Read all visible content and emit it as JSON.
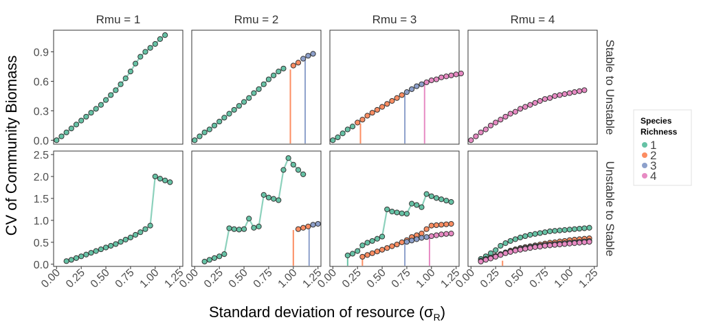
{
  "chart_data": {
    "type": "scatter",
    "ylabel": "CV of Community Biomass",
    "xlabel": "Standard deviation of resource (σ",
    "xlabel_sub": "R",
    "xlabel_close": ")",
    "col_strips": [
      "Rmu = 1",
      "Rmu = 2",
      "Rmu = 3",
      "Rmu = 4"
    ],
    "row_strips": [
      "Stable to Unstable",
      "Unstable to Stable"
    ],
    "x_ticks": [
      "0.00",
      "0.25",
      "0.50",
      "0.75",
      "1.00",
      "1.25"
    ],
    "x_tick_values": [
      0,
      0.25,
      0.5,
      0.75,
      1.0,
      1.25
    ],
    "xlim": [
      -0.03,
      1.28
    ],
    "rows": [
      {
        "ylim": [
          -0.04,
          1.12
        ],
        "y_tick_values": [
          0,
          0.3,
          0.6,
          0.9
        ],
        "y_ticks": [
          "0.0",
          "0.3",
          "0.6",
          "0.9"
        ]
      },
      {
        "ylim": [
          -0.05,
          2.58
        ],
        "y_tick_values": [
          0,
          0.5,
          1.0,
          1.5,
          2.0,
          2.5
        ],
        "y_ticks": [
          "0.0",
          "0.5",
          "1.0",
          "1.5",
          "2.0",
          "2.5"
        ]
      }
    ],
    "legend": {
      "title_line1": "Species",
      "title_line2": "Richness",
      "labels": [
        "1",
        "2",
        "3",
        "4"
      ]
    },
    "colors": {
      "1": "#66c2a5",
      "2": "#fc8d62",
      "3": "#8da0cb",
      "4": "#e78ac3"
    },
    "panels": [
      {
        "row": 0,
        "col": 0,
        "series": [
          {
            "richness": "1",
            "x_start": 0.0,
            "x_step": 0.05,
            "y": [
              0.0,
              0.04,
              0.08,
              0.12,
              0.16,
              0.2,
              0.24,
              0.28,
              0.32,
              0.36,
              0.41,
              0.46,
              0.51,
              0.57,
              0.63,
              0.7,
              0.78,
              0.85,
              0.9,
              0.94,
              0.98,
              1.03,
              1.07
            ]
          }
        ],
        "vlines": []
      },
      {
        "row": 0,
        "col": 1,
        "series": [
          {
            "richness": "1",
            "x_start": 0.0,
            "x_step": 0.05,
            "y": [
              0.0,
              0.04,
              0.08,
              0.11,
              0.15,
              0.19,
              0.23,
              0.27,
              0.31,
              0.35,
              0.39,
              0.43,
              0.48,
              0.52,
              0.57,
              0.62,
              0.66,
              0.7,
              0.73
            ]
          },
          {
            "richness": "2",
            "x_start": 1.0,
            "x_step": 0.05,
            "y": [
              0.76,
              0.79
            ]
          },
          {
            "richness": "3",
            "x_start": 1.1,
            "x_step": 0.05,
            "y": [
              0.83,
              0.86,
              0.88
            ]
          }
        ],
        "vlines": [
          {
            "richness": "2",
            "x": 0.97,
            "y_top": 0.72
          },
          {
            "richness": "3",
            "x": 1.12,
            "y_top": 0.84
          }
        ]
      },
      {
        "row": 0,
        "col": 2,
        "series": [
          {
            "richness": "1",
            "x_start": 0.0,
            "x_step": 0.05,
            "y": [
              0.0,
              0.03,
              0.07,
              0.11,
              0.14
            ]
          },
          {
            "richness": "2",
            "x_start": 0.25,
            "x_step": 0.05,
            "y": [
              0.18,
              0.21,
              0.25,
              0.28,
              0.31,
              0.34,
              0.37,
              0.4,
              0.43,
              0.46
            ]
          },
          {
            "richness": "3",
            "x_start": 0.75,
            "x_step": 0.05,
            "y": [
              0.49,
              0.52,
              0.55,
              0.57
            ]
          },
          {
            "richness": "4",
            "x_start": 0.95,
            "x_step": 0.05,
            "y": [
              0.59,
              0.61,
              0.62,
              0.64,
              0.65,
              0.66,
              0.67,
              0.68
            ]
          }
        ],
        "vlines": [
          {
            "richness": "2",
            "x": 0.28,
            "y_top": 0.17
          },
          {
            "richness": "3",
            "x": 0.73,
            "y_top": 0.47
          },
          {
            "richness": "4",
            "x": 0.93,
            "y_top": 0.58
          }
        ]
      },
      {
        "row": 0,
        "col": 3,
        "series": [
          {
            "richness": "4",
            "x_start": 0.0,
            "x_step": 0.05,
            "y": [
              0.0,
              0.04,
              0.08,
              0.11,
              0.15,
              0.18,
              0.21,
              0.24,
              0.27,
              0.29,
              0.32,
              0.34,
              0.36,
              0.38,
              0.4,
              0.42,
              0.43,
              0.45,
              0.46,
              0.47,
              0.48,
              0.49,
              0.5,
              0.51
            ]
          }
        ],
        "vlines": []
      },
      {
        "row": 1,
        "col": 0,
        "series": [
          {
            "richness": "1",
            "x_start": 0.1,
            "x_step": 0.05,
            "y": [
              0.07,
              0.1,
              0.14,
              0.18,
              0.22,
              0.26,
              0.3,
              0.34,
              0.38,
              0.42,
              0.46,
              0.51,
              0.56,
              0.61,
              0.67,
              0.73,
              0.8,
              0.88,
              2.0,
              1.95,
              1.91,
              1.87
            ]
          }
        ],
        "vlines": []
      },
      {
        "row": 1,
        "col": 1,
        "series": [
          {
            "richness": "1",
            "x_start": 0.1,
            "x_step": 0.05,
            "y": [
              0.06,
              0.1,
              0.14,
              0.18,
              0.23,
              0.82,
              0.8,
              0.79,
              0.8,
              1.04,
              0.83,
              0.86,
              1.58,
              1.52,
              1.49,
              1.46,
              2.15,
              2.42,
              2.27,
              2.15,
              2.05
            ]
          },
          {
            "richness": "2",
            "x_start": 1.05,
            "x_step": 0.05,
            "y": [
              0.8,
              0.83,
              0.86
            ]
          },
          {
            "richness": "3",
            "x_start": 1.2,
            "x_step": 0.05,
            "y": [
              0.9,
              0.92
            ]
          }
        ],
        "vlines": [
          {
            "richness": "2",
            "x": 1.0,
            "y_top": 0.78
          },
          {
            "richness": "3",
            "x": 1.16,
            "y_top": 0.89
          }
        ]
      },
      {
        "row": 1,
        "col": 2,
        "series": [
          {
            "richness": "1",
            "x_start": 0.15,
            "x_step": 0.05,
            "y": [
              0.2,
              0.24,
              0.3,
              0.43,
              0.49,
              0.53,
              0.58,
              0.63,
              1.25,
              1.2,
              1.18,
              1.16,
              1.15,
              1.38,
              1.35,
              1.3,
              1.6,
              1.55,
              1.51,
              1.48,
              1.45,
              1.42
            ]
          },
          {
            "richness": "2",
            "x_start": 0.3,
            "x_step": 0.05,
            "y": [
              0.17,
              0.21,
              0.25,
              0.29,
              0.33,
              0.37,
              0.41,
              0.45,
              0.5,
              0.55,
              0.62,
              0.66,
              0.7,
              0.8,
              0.88,
              0.89,
              0.9,
              0.91,
              0.92
            ]
          },
          {
            "richness": "3",
            "x_start": 0.75,
            "x_step": 0.05,
            "y": [
              0.51,
              0.54,
              0.57,
              0.6,
              0.62
            ]
          },
          {
            "richness": "4",
            "x_start": 1.0,
            "x_step": 0.05,
            "y": [
              0.64,
              0.66,
              0.68,
              0.69,
              0.7
            ]
          }
        ],
        "vlines": [
          {
            "richness": "1",
            "x": 0.15,
            "y_top": 0.18
          },
          {
            "richness": "2",
            "x": 0.3,
            "y_top": 0.15
          },
          {
            "richness": "3",
            "x": 0.73,
            "y_top": 0.5
          },
          {
            "richness": "4",
            "x": 0.98,
            "y_top": 0.63
          }
        ]
      },
      {
        "row": 1,
        "col": 3,
        "series": [
          {
            "richness": "1",
            "x_start": 0.1,
            "x_step": 0.05,
            "y": [
              0.12,
              0.18,
              0.25,
              0.32,
              0.42,
              0.48,
              0.53,
              0.57,
              0.61,
              0.64,
              0.67,
              0.69,
              0.71,
              0.73,
              0.75,
              0.76,
              0.77,
              0.78,
              0.79,
              0.8,
              0.81,
              0.82,
              0.83
            ]
          },
          {
            "richness": "2",
            "x_start": 0.1,
            "x_step": 0.05,
            "y": [
              0.08,
              0.12,
              0.15,
              0.19,
              0.23,
              0.27,
              0.31,
              0.34,
              0.37,
              0.39,
              0.41,
              0.43,
              0.45,
              0.47,
              0.49,
              0.5,
              0.52,
              0.53,
              0.55,
              0.56,
              0.57,
              0.58,
              0.59
            ]
          },
          {
            "richness": "3",
            "x_start": 0.1,
            "x_step": 0.05,
            "y": [
              0.07,
              0.11,
              0.14,
              0.18,
              0.22,
              0.26,
              0.29,
              0.32,
              0.35,
              0.37,
              0.39,
              0.41,
              0.42,
              0.44,
              0.45,
              0.46,
              0.47,
              0.48,
              0.49,
              0.5,
              0.51,
              0.52,
              0.53
            ]
          },
          {
            "richness": "4",
            "x_start": 0.1,
            "x_step": 0.05,
            "y": [
              0.06,
              0.1,
              0.13,
              0.17,
              0.21,
              0.25,
              0.28,
              0.31,
              0.33,
              0.35,
              0.37,
              0.39,
              0.4,
              0.42,
              0.43,
              0.44,
              0.45,
              0.46,
              0.47,
              0.48,
              0.49,
              0.5,
              0.51
            ]
          }
        ],
        "vlines": [
          {
            "richness": "2",
            "x": 0.32,
            "y_top": 0.08
          }
        ]
      }
    ]
  }
}
